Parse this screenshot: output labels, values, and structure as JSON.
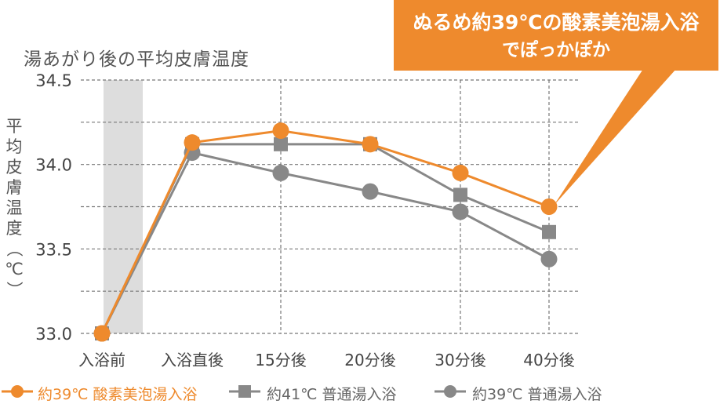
{
  "callout": {
    "line1": "ぬるめ約39℃の酸素美泡湯入浴",
    "line2": "でぽっかぽか",
    "color": "#EE8A2D"
  },
  "title": "湯あがり後の平均皮膚温度",
  "ylabel_chars": [
    "平",
    "均",
    "皮",
    "膚",
    "温",
    "度",
    "（",
    "℃",
    "）"
  ],
  "chart_data": {
    "type": "line",
    "title": "湯あがり後の平均皮膚温度",
    "ylabel": "平均皮膚温度（℃）",
    "xlabel": "",
    "categories": [
      "入浴前",
      "入浴直後",
      "15分後",
      "20分後",
      "30分後",
      "40分後"
    ],
    "ylim": [
      33.0,
      34.5
    ],
    "yticks": [
      "33.0",
      "33.5",
      "34.0",
      "34.5"
    ],
    "grid": true,
    "shaded_category": "入浴前",
    "legend_position": "bottom",
    "series": [
      {
        "name": "約39℃ 酸素美泡湯入浴",
        "color": "#EE8A2D",
        "marker": "circle",
        "values": [
          33.0,
          34.13,
          34.2,
          34.12,
          33.95,
          33.75
        ]
      },
      {
        "name": "約41℃ 普通湯入浴",
        "color": "#888888",
        "marker": "square",
        "values": [
          33.0,
          34.12,
          34.12,
          34.12,
          33.82,
          33.6
        ]
      },
      {
        "name": "約39℃ 普通湯入浴",
        "color": "#888888",
        "marker": "circle",
        "values": [
          33.0,
          34.07,
          33.95,
          33.84,
          33.72,
          33.44
        ]
      }
    ]
  }
}
